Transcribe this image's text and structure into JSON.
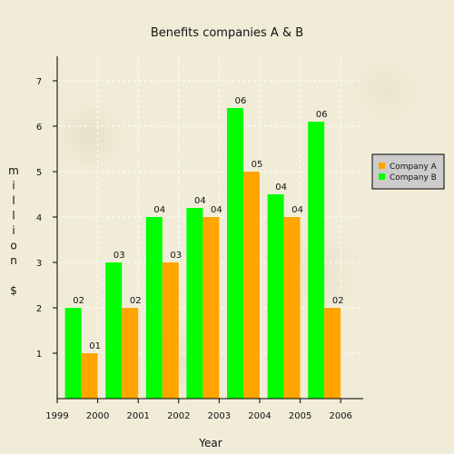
{
  "chart_data": {
    "type": "bar",
    "title": "Benefits companies A & B",
    "xlabel": "Year",
    "ylabel_chars": [
      "m",
      "i",
      "l",
      "l",
      "i",
      "o",
      "n",
      "",
      "$"
    ],
    "x_ticks": [
      "1999",
      "2000",
      "2001",
      "2002",
      "2003",
      "2004",
      "2005",
      "2006"
    ],
    "categories": [
      "2000",
      "2001",
      "2002",
      "2003",
      "2004",
      "2005",
      "2006"
    ],
    "y_ticks": [
      "1",
      "2",
      "3",
      "4",
      "5",
      "6",
      "7"
    ],
    "ylim": [
      0,
      7.5
    ],
    "grid": true,
    "legend_position": "right",
    "series": [
      {
        "name": "Company B",
        "color": "#00ff00",
        "values": [
          2,
          3,
          4,
          4.2,
          6.4,
          4.5,
          6.1
        ],
        "labels": [
          "02",
          "03",
          "04",
          "04",
          "06",
          "04",
          "06"
        ]
      },
      {
        "name": "Company A",
        "color": "#ffa500",
        "values": [
          1,
          2,
          3,
          4,
          5,
          4,
          2
        ],
        "labels": [
          "01",
          "02",
          "03",
          "04",
          "05",
          "04",
          "02"
        ]
      }
    ],
    "legend_order": [
      1,
      0
    ]
  }
}
